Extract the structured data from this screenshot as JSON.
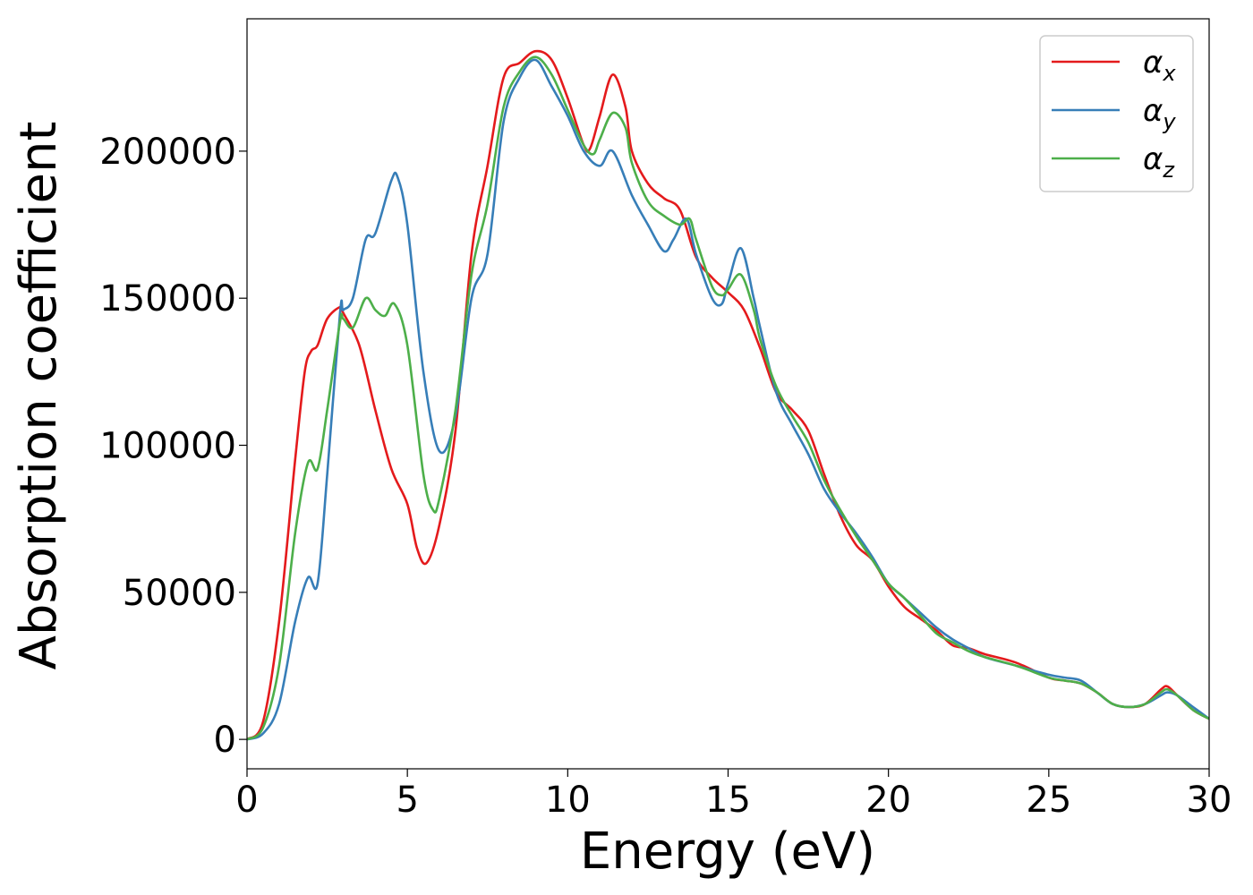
{
  "chart_data": {
    "type": "line",
    "xlabel": "Energy (eV)",
    "ylabel": "Absorption coefficient",
    "xlim": [
      0,
      30
    ],
    "ylim": [
      -10000,
      245000
    ],
    "xticks": [
      0,
      5,
      10,
      15,
      20,
      25,
      30
    ],
    "yticks": [
      0,
      50000,
      100000,
      150000,
      200000
    ],
    "xtick_labels": [
      "0",
      "5",
      "10",
      "15",
      "20",
      "25",
      "30"
    ],
    "ytick_labels": [
      "0",
      "50000",
      "100000",
      "150000",
      "200000"
    ],
    "grid": false,
    "legend_position": "top-right",
    "series": [
      {
        "name": "α",
        "subscript": "x",
        "color": "#e41a1c",
        "x": [
          0,
          0.5,
          1.0,
          1.5,
          1.8,
          2.0,
          2.2,
          2.5,
          2.9,
          3.0,
          3.5,
          4.0,
          4.5,
          5.0,
          5.3,
          5.6,
          6.0,
          6.5,
          7.0,
          7.5,
          8.0,
          8.5,
          9.0,
          9.5,
          10.0,
          10.5,
          10.7,
          11.0,
          11.4,
          11.8,
          12.0,
          12.5,
          13.0,
          13.5,
          14.0,
          14.5,
          15.0,
          15.5,
          16.0,
          16.5,
          17.0,
          17.5,
          18.0,
          18.5,
          19.0,
          19.5,
          20.0,
          20.5,
          21.0,
          21.5,
          22.0,
          22.5,
          23.0,
          24.0,
          25.0,
          25.5,
          26.0,
          26.5,
          27.0,
          27.5,
          28.0,
          28.5,
          28.7,
          29.0,
          29.5,
          30.0
        ],
        "y": [
          0,
          6000,
          40000,
          95000,
          125000,
          132000,
          134000,
          143000,
          147000,
          145000,
          134000,
          112000,
          92000,
          80000,
          65000,
          60000,
          73000,
          105000,
          165000,
          195000,
          225000,
          230000,
          234000,
          231000,
          218000,
          202000,
          201000,
          212000,
          226000,
          215000,
          200000,
          189000,
          184000,
          180000,
          164000,
          157000,
          152000,
          146000,
          133000,
          118000,
          112000,
          105000,
          90000,
          76000,
          66000,
          61000,
          52000,
          45000,
          41000,
          37000,
          32000,
          31000,
          29000,
          26000,
          21000,
          20000,
          19000,
          16000,
          12000,
          11000,
          12000,
          17000,
          18000,
          15000,
          10000,
          7000
        ]
      },
      {
        "name": "α",
        "subscript": "y",
        "color": "#377eb8",
        "x": [
          0,
          0.5,
          1.0,
          1.5,
          1.9,
          2.2,
          2.5,
          2.9,
          3.0,
          3.3,
          3.7,
          4.0,
          4.5,
          4.7,
          5.0,
          5.5,
          6.0,
          6.5,
          7.0,
          7.5,
          8.0,
          8.5,
          9.0,
          9.5,
          10.0,
          10.5,
          11.0,
          11.4,
          12.0,
          12.5,
          13.0,
          13.3,
          13.7,
          14.0,
          14.5,
          14.8,
          15.0,
          15.4,
          15.8,
          16.0,
          16.5,
          17.0,
          17.5,
          18.0,
          18.5,
          19.0,
          19.5,
          20.0,
          20.5,
          21.0,
          21.5,
          22.0,
          22.5,
          23.0,
          24.0,
          25.0,
          25.5,
          26.0,
          26.5,
          27.0,
          27.5,
          28.0,
          28.5,
          28.7,
          29.0,
          29.5,
          30.0
        ],
        "y": [
          0,
          2000,
          12000,
          40000,
          55000,
          53000,
          90000,
          145000,
          146000,
          150000,
          170000,
          172000,
          190000,
          191000,
          175000,
          125000,
          98000,
          110000,
          150000,
          165000,
          210000,
          225000,
          231000,
          222000,
          212000,
          200000,
          195000,
          200000,
          185000,
          175000,
          166000,
          170000,
          177000,
          165000,
          150000,
          148000,
          155000,
          167000,
          150000,
          140000,
          118000,
          107000,
          97000,
          85000,
          77000,
          70000,
          62000,
          53000,
          48000,
          43000,
          38000,
          34000,
          31000,
          28000,
          25000,
          22000,
          21000,
          20000,
          16000,
          12000,
          11000,
          12000,
          15000,
          16000,
          15000,
          11000,
          7000
        ]
      },
      {
        "name": "α",
        "subscript": "z",
        "color": "#4daf4a",
        "x": [
          0,
          0.5,
          1.0,
          1.5,
          1.9,
          2.2,
          2.5,
          2.9,
          3.0,
          3.3,
          3.7,
          4.0,
          4.3,
          4.6,
          5.0,
          5.5,
          5.8,
          6.0,
          6.5,
          7.0,
          7.5,
          8.0,
          8.5,
          9.0,
          9.5,
          10.0,
          10.5,
          10.8,
          11.0,
          11.4,
          11.8,
          12.0,
          12.5,
          13.0,
          13.5,
          13.8,
          14.0,
          14.5,
          14.8,
          15.0,
          15.4,
          15.8,
          16.0,
          16.5,
          17.0,
          17.5,
          18.0,
          18.5,
          19.0,
          19.5,
          20.0,
          20.5,
          21.0,
          21.5,
          22.0,
          22.5,
          23.0,
          24.0,
          25.0,
          25.5,
          26.0,
          26.5,
          27.0,
          27.5,
          28.0,
          28.5,
          28.7,
          29.0,
          29.5,
          30.0
        ],
        "y": [
          0,
          4000,
          25000,
          70000,
          94000,
          92000,
          112000,
          142000,
          143000,
          140000,
          150000,
          146000,
          144000,
          148000,
          134000,
          90000,
          78000,
          82000,
          112000,
          158000,
          182000,
          215000,
          227000,
          232000,
          226000,
          214000,
          202000,
          199000,
          204000,
          213000,
          208000,
          196000,
          183000,
          178000,
          175000,
          177000,
          170000,
          154000,
          151000,
          153000,
          158000,
          146000,
          136000,
          120000,
          110000,
          101000,
          88000,
          78000,
          69000,
          61000,
          53000,
          48000,
          42000,
          36000,
          33000,
          30000,
          28000,
          25000,
          21000,
          20000,
          19000,
          16000,
          12000,
          11000,
          12000,
          16000,
          17000,
          15000,
          10000,
          7000
        ]
      }
    ]
  }
}
